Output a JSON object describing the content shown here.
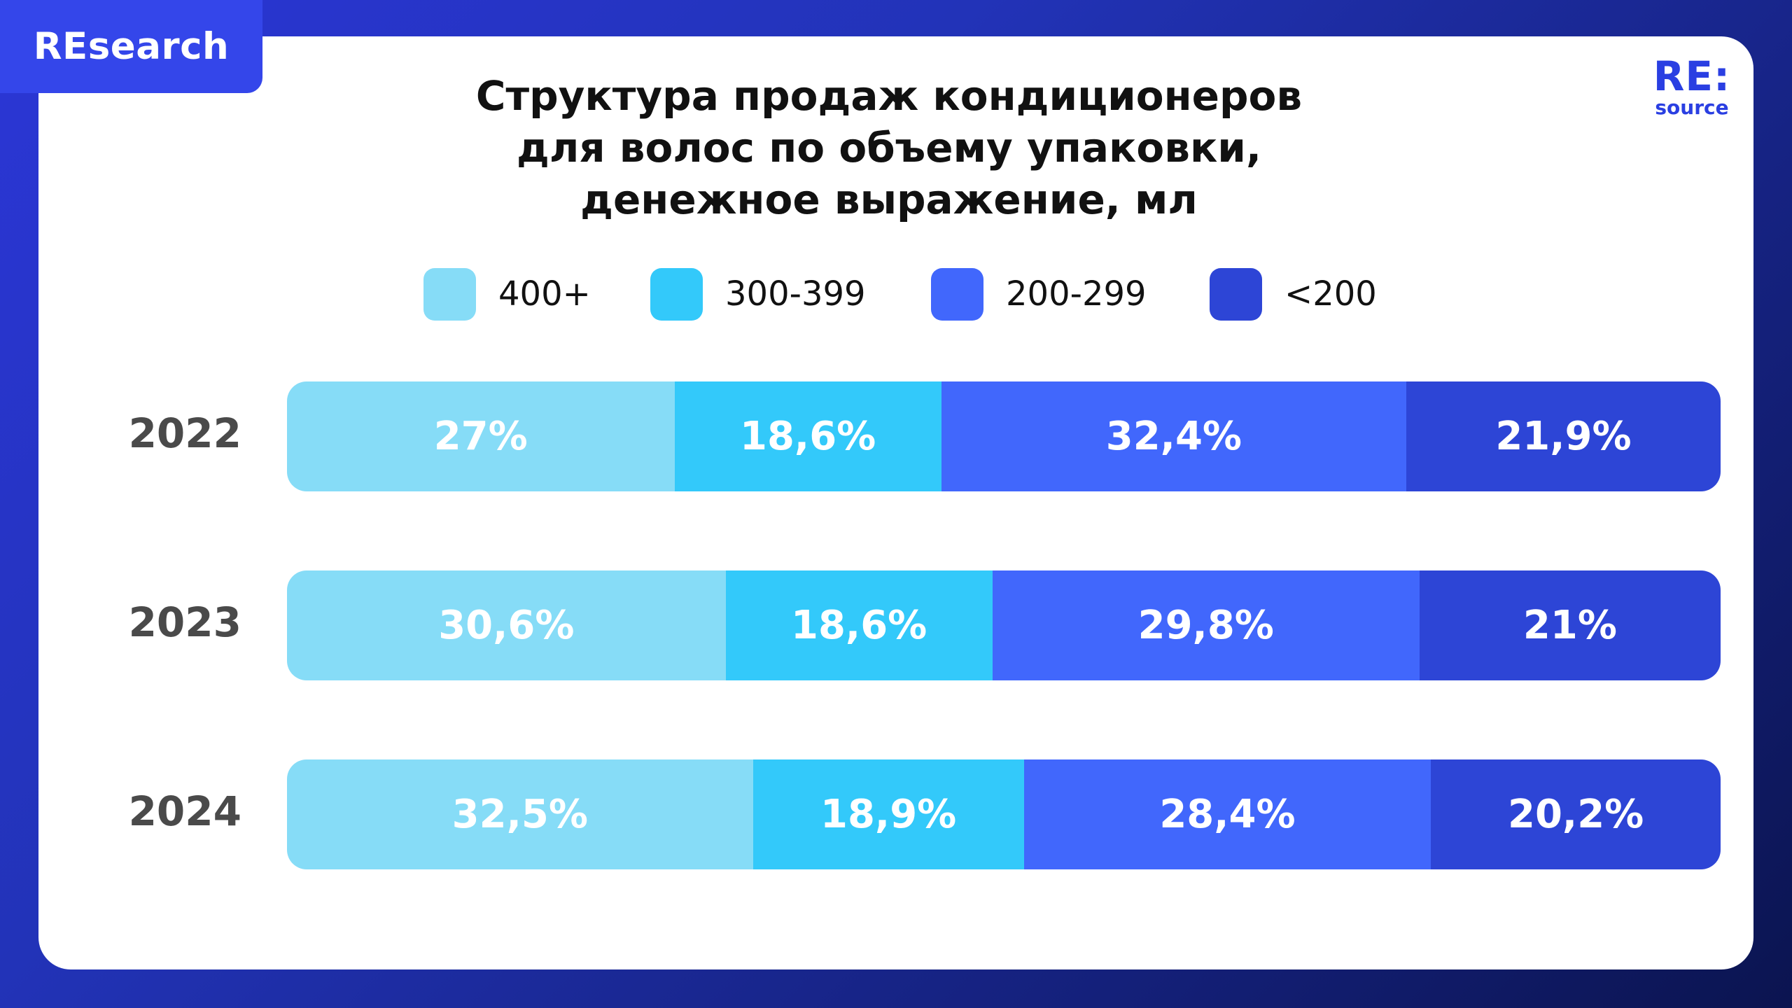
{
  "badge": "REsearch",
  "logo": {
    "top": "RE:",
    "bottom": "source"
  },
  "title_lines": [
    "Структура продаж кондиционеров",
    "для волос по объему упаковки,",
    "денежное выражение, мл"
  ],
  "colors": {
    "background": "#1e2ea8",
    "card": "#ffffff",
    "badge": "#3446ea",
    "logo": "#2a3fe2"
  },
  "chart_data": {
    "type": "bar",
    "orientation": "horizontal",
    "stacked": true,
    "title": "Структура продаж кондиционеров для волос по объему упаковки, денежное выражение, мл",
    "categories": [
      "2022",
      "2023",
      "2024"
    ],
    "series": [
      {
        "name": "400+",
        "color": "#86dcf7",
        "values": [
          27,
          30.6,
          32.5
        ],
        "labels": [
          "27%",
          "30,6%",
          "32,5%"
        ]
      },
      {
        "name": "300-399",
        "color": "#33c9fa",
        "values": [
          18.6,
          18.6,
          18.9
        ],
        "labels": [
          "18,6%",
          "18,6%",
          "18,9%"
        ]
      },
      {
        "name": "200-299",
        "color": "#4167fc",
        "values": [
          32.4,
          29.8,
          28.4
        ],
        "labels": [
          "32,4%",
          "29,8%",
          "28,4%"
        ]
      },
      {
        "name": "<200",
        "color": "#2d45d6",
        "values": [
          21.9,
          21,
          20.2
        ],
        "labels": [
          "21,9%",
          "21%",
          "20,2%"
        ]
      }
    ],
    "legend_position": "top"
  }
}
